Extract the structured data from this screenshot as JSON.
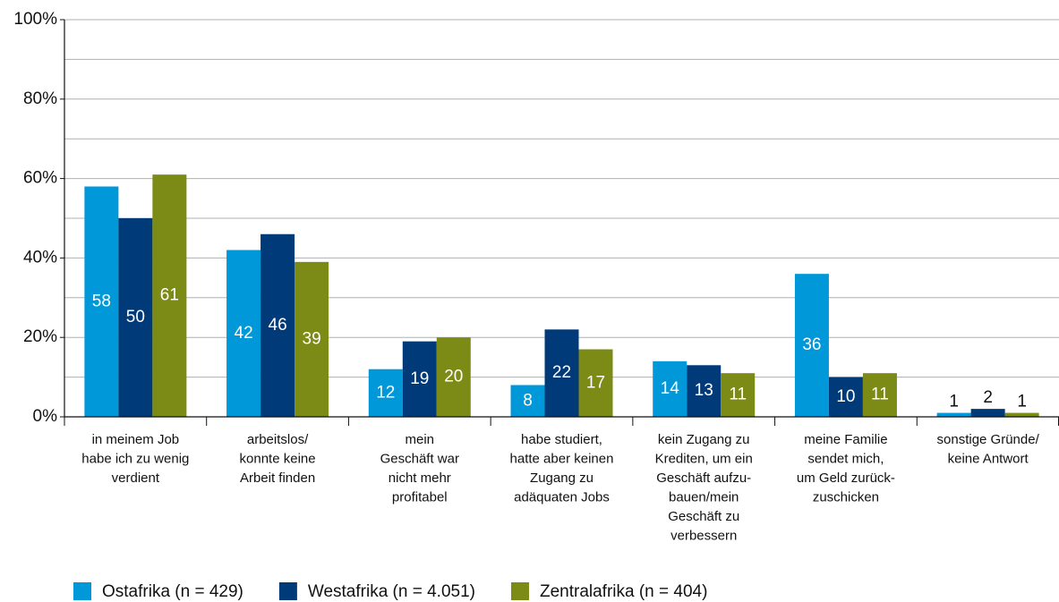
{
  "chart_data": {
    "type": "bar",
    "categories": [
      [
        "in meinem Job",
        "habe ich zu wenig",
        "verdient"
      ],
      [
        "arbeitslos/",
        "konnte keine",
        "Arbeit finden"
      ],
      [
        "mein",
        "Geschäft war",
        "nicht mehr",
        "profitabel"
      ],
      [
        "habe studiert,",
        "hatte aber keinen",
        "Zugang zu",
        "adäquaten Jobs"
      ],
      [
        "kein Zugang zu",
        "Krediten, um ein",
        "Geschäft aufzu-",
        "bauen/mein",
        "Geschäft zu",
        "verbessern"
      ],
      [
        "meine Familie",
        "sendet mich,",
        "um Geld zurück-",
        "zuschicken"
      ],
      [
        "sonstige Gründe/",
        "keine Antwort"
      ]
    ],
    "series": [
      {
        "name": "Ostafrika (n = 429)",
        "color": "#0098d8",
        "values": [
          58,
          42,
          12,
          8,
          14,
          36,
          1
        ]
      },
      {
        "name": "Westafrika (n = 4.051)",
        "color": "#003a78",
        "values": [
          50,
          46,
          19,
          22,
          13,
          10,
          2
        ]
      },
      {
        "name": "Zentralafrika (n = 404)",
        "color": "#7b8b16",
        "values": [
          61,
          39,
          20,
          17,
          11,
          11,
          1
        ]
      }
    ],
    "ylim": [
      0,
      100
    ],
    "yticks": [
      {
        "value": 0,
        "label": "0%"
      },
      {
        "value": 20,
        "label": "20%"
      },
      {
        "value": 40,
        "label": "40%"
      },
      {
        "value": 60,
        "label": "60%"
      },
      {
        "value": 80,
        "label": "80%"
      },
      {
        "value": 100,
        "label": "100%"
      }
    ],
    "minor_yticks": [
      10,
      30,
      50,
      70,
      90
    ],
    "grid": true,
    "legend": "bottom"
  }
}
